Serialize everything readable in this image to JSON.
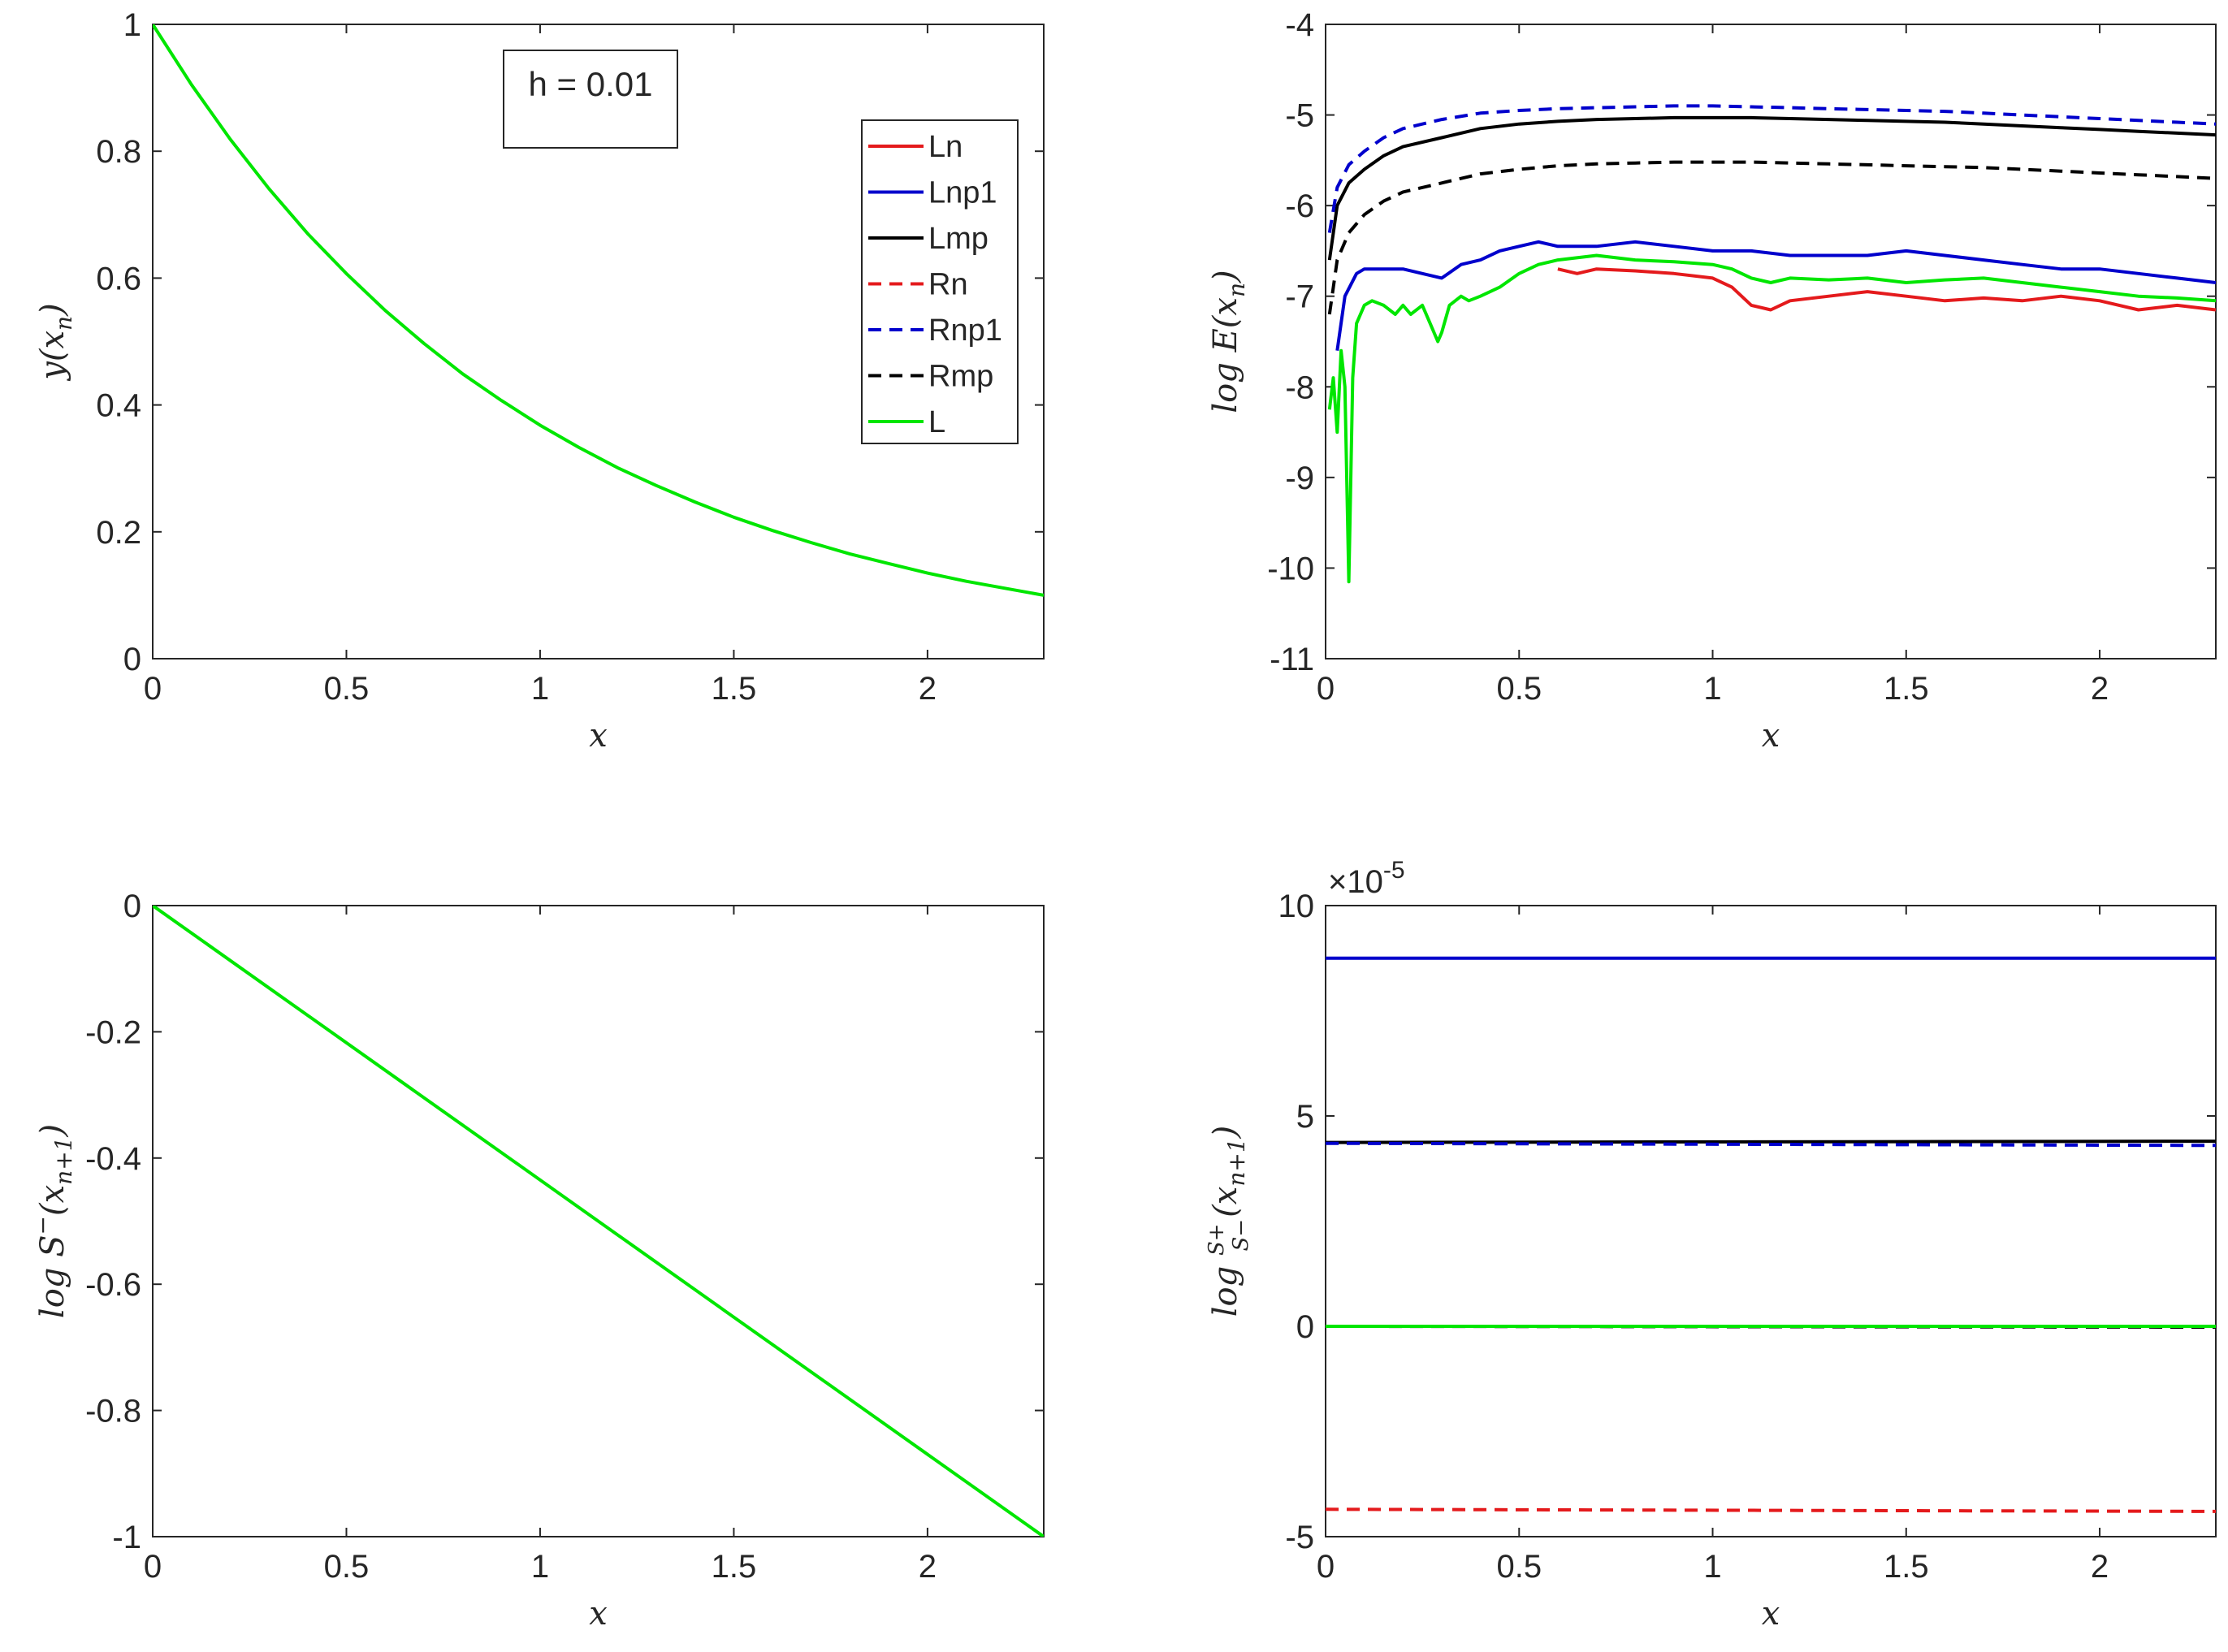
{
  "chart_data": [
    {
      "id": "top-left",
      "type": "line",
      "xlabel": "x",
      "ylabel": "y(x_n)",
      "ylabel_parts": {
        "base": "y(x",
        "sub": "n",
        "tail": ")"
      },
      "xlim": [
        0,
        2.3
      ],
      "ylim": [
        0,
        1
      ],
      "xticks": [
        0,
        0.5,
        1,
        1.5,
        2
      ],
      "xtick_labels": [
        "0",
        "0.5",
        "1",
        "1.5",
        "2"
      ],
      "yticks": [
        0,
        0.2,
        0.4,
        0.6,
        0.8,
        1
      ],
      "ytick_labels": [
        "0",
        "0.2",
        "0.4",
        "0.6",
        "0.8",
        "1"
      ],
      "annotation": "h = 0.01",
      "series": [
        {
          "name": "L",
          "color": "#00e600",
          "dash": "solid",
          "x": [
            0,
            0.1,
            0.2,
            0.3,
            0.4,
            0.5,
            0.6,
            0.7,
            0.8,
            0.9,
            1.0,
            1.1,
            1.2,
            1.3,
            1.4,
            1.5,
            1.6,
            1.7,
            1.8,
            1.9,
            2.0,
            2.1,
            2.2,
            2.3
          ],
          "y": [
            1.0,
            0.905,
            0.819,
            0.741,
            0.67,
            0.607,
            0.549,
            0.497,
            0.449,
            0.407,
            0.368,
            0.333,
            0.301,
            0.273,
            0.247,
            0.223,
            0.202,
            0.183,
            0.165,
            0.15,
            0.135,
            0.122,
            0.111,
            0.1
          ]
        }
      ]
    },
    {
      "id": "top-right",
      "type": "line",
      "xlabel": "x",
      "ylabel": "log E(x_n)",
      "ylabel_parts": {
        "base": "log E(x",
        "sub": "n",
        "tail": ")"
      },
      "xlim": [
        0,
        2.3
      ],
      "ylim": [
        -11,
        -4
      ],
      "xticks": [
        0,
        0.5,
        1,
        1.5,
        2
      ],
      "xtick_labels": [
        "0",
        "0.5",
        "1",
        "1.5",
        "2"
      ],
      "yticks": [
        -11,
        -10,
        -9,
        -8,
        -7,
        -6,
        -5,
        -4
      ],
      "ytick_labels": [
        "-11",
        "-10",
        "-9",
        "-8",
        "-7",
        "-6",
        "-5",
        "-4"
      ],
      "legend": {
        "position": "top-left",
        "entries": [
          "Ln",
          "Lnp1",
          "Lmp",
          "Rn",
          "Rnp1",
          "Rmp",
          "L"
        ]
      },
      "series": [
        {
          "name": "Ln",
          "color": "#e41a1c",
          "dash": "solid",
          "x": [
            0.6,
            0.65,
            0.7,
            0.8,
            0.9,
            1.0,
            1.05,
            1.1,
            1.15,
            1.2,
            1.3,
            1.4,
            1.5,
            1.6,
            1.7,
            1.8,
            1.9,
            2.0,
            2.1,
            2.2,
            2.3
          ],
          "y": [
            -6.7,
            -6.75,
            -6.7,
            -6.72,
            -6.75,
            -6.8,
            -6.9,
            -7.1,
            -7.15,
            -7.05,
            -7.0,
            -6.95,
            -7.0,
            -7.05,
            -7.02,
            -7.05,
            -7.0,
            -7.05,
            -7.15,
            -7.1,
            -7.15
          ]
        },
        {
          "name": "Lnp1",
          "color": "#0000cc",
          "dash": "solid",
          "x": [
            0.03,
            0.05,
            0.08,
            0.1,
            0.15,
            0.2,
            0.25,
            0.3,
            0.35,
            0.4,
            0.45,
            0.5,
            0.55,
            0.6,
            0.7,
            0.8,
            0.9,
            1.0,
            1.1,
            1.2,
            1.3,
            1.4,
            1.5,
            1.6,
            1.7,
            1.8,
            1.9,
            2.0,
            2.1,
            2.2,
            2.3
          ],
          "y": [
            -7.6,
            -7.0,
            -6.75,
            -6.7,
            -6.7,
            -6.7,
            -6.75,
            -6.8,
            -6.65,
            -6.6,
            -6.5,
            -6.45,
            -6.4,
            -6.45,
            -6.45,
            -6.4,
            -6.45,
            -6.5,
            -6.5,
            -6.55,
            -6.55,
            -6.55,
            -6.5,
            -6.55,
            -6.6,
            -6.65,
            -6.7,
            -6.7,
            -6.75,
            -6.8,
            -6.85
          ]
        },
        {
          "name": "Lmp",
          "color": "#000000",
          "dash": "solid",
          "x": [
            0.01,
            0.03,
            0.06,
            0.1,
            0.15,
            0.2,
            0.3,
            0.4,
            0.5,
            0.6,
            0.7,
            0.8,
            0.9,
            1.0,
            1.1,
            1.2,
            1.3,
            1.4,
            1.5,
            1.6,
            1.7,
            1.8,
            1.9,
            2.0,
            2.1,
            2.2,
            2.3
          ],
          "y": [
            -6.6,
            -6.0,
            -5.75,
            -5.6,
            -5.45,
            -5.35,
            -5.25,
            -5.15,
            -5.1,
            -5.07,
            -5.05,
            -5.04,
            -5.03,
            -5.03,
            -5.03,
            -5.04,
            -5.05,
            -5.06,
            -5.07,
            -5.08,
            -5.1,
            -5.12,
            -5.14,
            -5.16,
            -5.18,
            -5.2,
            -5.22
          ]
        },
        {
          "name": "Rn",
          "color": "#e41a1c",
          "dash": "dashed",
          "x": [],
          "y": []
        },
        {
          "name": "Rnp1",
          "color": "#0000cc",
          "dash": "dashed",
          "x": [
            0.01,
            0.03,
            0.06,
            0.1,
            0.15,
            0.2,
            0.3,
            0.4,
            0.5,
            0.6,
            0.7,
            0.8,
            0.9,
            1.0,
            1.1,
            1.2,
            1.3,
            1.4,
            1.5,
            1.6,
            1.7,
            1.8,
            1.9,
            2.0,
            2.1,
            2.2,
            2.3
          ],
          "y": [
            -6.3,
            -5.8,
            -5.55,
            -5.4,
            -5.25,
            -5.15,
            -5.05,
            -4.98,
            -4.95,
            -4.93,
            -4.92,
            -4.91,
            -4.9,
            -4.9,
            -4.91,
            -4.92,
            -4.93,
            -4.94,
            -4.95,
            -4.96,
            -4.98,
            -5.0,
            -5.02,
            -5.04,
            -5.06,
            -5.08,
            -5.1
          ]
        },
        {
          "name": "Rmp",
          "color": "#000000",
          "dash": "dashed",
          "x": [
            0.01,
            0.03,
            0.06,
            0.1,
            0.15,
            0.2,
            0.3,
            0.4,
            0.5,
            0.6,
            0.7,
            0.8,
            0.9,
            1.0,
            1.1,
            1.2,
            1.3,
            1.4,
            1.5,
            1.6,
            1.7,
            1.8,
            1.9,
            2.0,
            2.1,
            2.2,
            2.3
          ],
          "y": [
            -7.2,
            -6.6,
            -6.3,
            -6.1,
            -5.95,
            -5.85,
            -5.75,
            -5.65,
            -5.6,
            -5.56,
            -5.54,
            -5.53,
            -5.52,
            -5.52,
            -5.52,
            -5.53,
            -5.54,
            -5.55,
            -5.56,
            -5.57,
            -5.58,
            -5.6,
            -5.62,
            -5.64,
            -5.66,
            -5.68,
            -5.7
          ]
        },
        {
          "name": "L",
          "color": "#00e600",
          "dash": "solid",
          "x": [
            0.01,
            0.02,
            0.03,
            0.04,
            0.05,
            0.06,
            0.07,
            0.08,
            0.1,
            0.12,
            0.15,
            0.18,
            0.2,
            0.22,
            0.25,
            0.27,
            0.29,
            0.3,
            0.32,
            0.35,
            0.37,
            0.4,
            0.45,
            0.5,
            0.55,
            0.6,
            0.7,
            0.8,
            0.9,
            1.0,
            1.05,
            1.1,
            1.15,
            1.2,
            1.3,
            1.4,
            1.5,
            1.6,
            1.7,
            1.8,
            1.9,
            2.0,
            2.1,
            2.2,
            2.3
          ],
          "y": [
            -8.25,
            -7.9,
            -8.5,
            -7.6,
            -8.0,
            -10.15,
            -7.9,
            -7.3,
            -7.1,
            -7.05,
            -7.1,
            -7.2,
            -7.1,
            -7.2,
            -7.1,
            -7.3,
            -7.5,
            -7.4,
            -7.1,
            -7.0,
            -7.05,
            -7.0,
            -6.9,
            -6.75,
            -6.65,
            -6.6,
            -6.55,
            -6.6,
            -6.62,
            -6.65,
            -6.7,
            -6.8,
            -6.85,
            -6.8,
            -6.82,
            -6.8,
            -6.85,
            -6.82,
            -6.8,
            -6.85,
            -6.9,
            -6.95,
            -7.0,
            -7.02,
            -7.05
          ]
        }
      ]
    },
    {
      "id": "bottom-left",
      "type": "line",
      "xlabel": "x",
      "ylabel": "log S^-(x_{n+1})",
      "ylabel_parts": {
        "base": "log S",
        "sup": "−",
        "mid": "(x",
        "sub": "n+1",
        "tail": ")"
      },
      "xlim": [
        0,
        2.3
      ],
      "ylim": [
        -1,
        0
      ],
      "xticks": [
        0,
        0.5,
        1,
        1.5,
        2
      ],
      "xtick_labels": [
        "0",
        "0.5",
        "1",
        "1.5",
        "2"
      ],
      "yticks": [
        -1,
        -0.8,
        -0.6,
        -0.4,
        -0.2,
        0
      ],
      "ytick_labels": [
        "-1",
        "-0.8",
        "-0.6",
        "-0.4",
        "-0.2",
        "0"
      ],
      "series": [
        {
          "name": "L",
          "color": "#00e600",
          "dash": "solid",
          "x": [
            0,
            2.3
          ],
          "y": [
            0,
            -1.0
          ]
        }
      ]
    },
    {
      "id": "bottom-right",
      "type": "line",
      "xlabel": "x",
      "ylabel": "log (S^+/S^-)(x_{n+1})",
      "ylabel_parts": {
        "base": "log",
        "num": "S+",
        "den": "S−",
        "mid": "(x",
        "sub": "n+1",
        "tail": ")"
      },
      "exponent_label": "×10",
      "exponent_power": "-5",
      "xlim": [
        0,
        2.3
      ],
      "ylim": [
        -5,
        10
      ],
      "xticks": [
        0,
        0.5,
        1,
        1.5,
        2
      ],
      "xtick_labels": [
        "0",
        "0.5",
        "1",
        "1.5",
        "2"
      ],
      "yticks": [
        -5,
        0,
        5,
        10
      ],
      "ytick_labels": [
        "-5",
        "0",
        "5",
        "10"
      ],
      "series": [
        {
          "name": "Ln",
          "color": "#e41a1c",
          "dash": "solid",
          "x": [
            0,
            2.3
          ],
          "y": [
            0.0,
            0.0
          ]
        },
        {
          "name": "Lnp1",
          "color": "#0000cc",
          "dash": "solid",
          "x": [
            0,
            2.3
          ],
          "y": [
            8.75,
            8.75
          ]
        },
        {
          "name": "Lmp",
          "color": "#000000",
          "dash": "solid",
          "x": [
            0,
            2.3
          ],
          "y": [
            4.37,
            4.4
          ]
        },
        {
          "name": "Rn",
          "color": "#e41a1c",
          "dash": "dashed",
          "x": [
            0,
            2.3
          ],
          "y": [
            -4.35,
            -4.4
          ]
        },
        {
          "name": "Rnp1",
          "color": "#0000cc",
          "dash": "dashed",
          "x": [
            0,
            2.3
          ],
          "y": [
            4.35,
            4.3
          ]
        },
        {
          "name": "Rmp",
          "color": "#000000",
          "dash": "dashed",
          "x": [
            0,
            2.3
          ],
          "y": [
            0.0,
            -0.02
          ]
        },
        {
          "name": "L",
          "color": "#00e600",
          "dash": "solid",
          "x": [
            0,
            2.3
          ],
          "y": [
            0.0,
            0.0
          ]
        }
      ]
    }
  ]
}
